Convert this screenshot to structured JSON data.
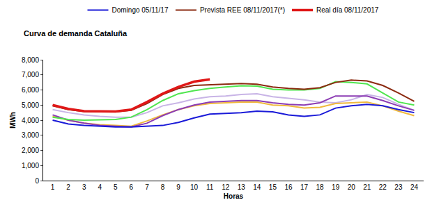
{
  "chart_data": {
    "type": "line",
    "title": "Curva de demanda Cataluña",
    "x_label": "Horas",
    "y_label": "MWh",
    "categories": [
      1,
      2,
      3,
      4,
      5,
      6,
      7,
      8,
      9,
      10,
      11,
      12,
      13,
      14,
      15,
      16,
      17,
      18,
      19,
      20,
      21,
      22,
      23,
      24
    ],
    "ylim": [
      0,
      8000
    ],
    "yticks": [
      0,
      {
        "value": 1000,
        "label": "1,000"
      },
      {
        "value": 2000,
        "label": "2,000"
      },
      {
        "value": 3000,
        "label": "3,000"
      },
      {
        "value": 4000,
        "label": "4,000"
      },
      {
        "value": 5000,
        "label": "5,000"
      },
      {
        "value": 6000,
        "label": "6,000"
      },
      {
        "value": 7000,
        "label": "7,000"
      },
      {
        "value": 8000,
        "label": "8,000"
      }
    ],
    "grid": false,
    "legend": "top",
    "series": [
      {
        "color": "#c8b4e6",
        "values": [
          4700,
          4500,
          4350,
          4250,
          4200,
          4200,
          4500,
          4950,
          5150,
          5400,
          5550,
          5600,
          5700,
          5750,
          5550,
          5450,
          5350,
          5200,
          5150,
          5350,
          5700,
          5500,
          5050,
          4650
        ]
      },
      {
        "color": "#f0b93c",
        "values": [
          4250,
          4000,
          3800,
          3700,
          3650,
          3600,
          3950,
          4350,
          4700,
          4950,
          5100,
          5150,
          5200,
          5200,
          5000,
          4950,
          4800,
          4850,
          5100,
          5150,
          5200,
          4950,
          4600,
          4300
        ]
      },
      {
        "color": "#8c3cb4",
        "values": [
          4350,
          4000,
          3800,
          3650,
          3600,
          3550,
          3800,
          4300,
          4700,
          5000,
          5200,
          5250,
          5300,
          5300,
          5150,
          5050,
          5000,
          5150,
          5600,
          5600,
          5600,
          5300,
          4950,
          4650
        ]
      },
      {
        "color": "#50e650",
        "values": [
          4200,
          4050,
          4000,
          4020,
          4050,
          4200,
          4700,
          5300,
          5750,
          5950,
          6100,
          6200,
          6280,
          6250,
          6050,
          6000,
          6000,
          6100,
          6550,
          6500,
          6400,
          5800,
          5200,
          5000
        ]
      },
      {
        "name": "Domingo 05/11/17",
        "color": "#1a1ad8",
        "values": [
          4000,
          3750,
          3650,
          3600,
          3550,
          3550,
          3600,
          3650,
          3850,
          4150,
          4400,
          4450,
          4500,
          4600,
          4550,
          4350,
          4250,
          4350,
          4800,
          4950,
          5050,
          4950,
          4700,
          4500
        ]
      },
      {
        "name": "Prevista REE 08/11/2017(*)",
        "color": "#8b2a10",
        "values": [
          4950,
          4700,
          4580,
          4550,
          4550,
          4650,
          5100,
          5700,
          6100,
          6300,
          6350,
          6400,
          6420,
          6380,
          6200,
          6100,
          6050,
          6150,
          6500,
          6650,
          6600,
          6300,
          5800,
          5250
        ]
      },
      {
        "name": "Real día 08/11/2017",
        "color": "#e01818",
        "line_style": "thick",
        "values": [
          5000,
          4750,
          4600,
          4570,
          4580,
          4700,
          5200,
          5750,
          6200,
          6550,
          6700,
          null,
          null,
          null,
          null,
          null,
          null,
          null,
          null,
          null,
          null,
          null,
          null,
          null
        ]
      }
    ]
  }
}
